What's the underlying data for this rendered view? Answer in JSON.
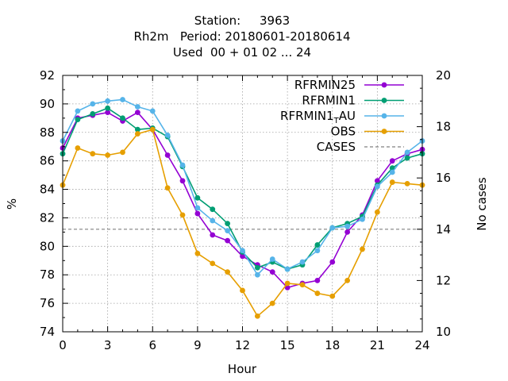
{
  "title": {
    "line1": "Station:     3963",
    "line2": "Rh2m   Period: 20180601-20180614",
    "line3": "Used  00 + 01 02 ... 24"
  },
  "chart_data": {
    "type": "line",
    "xlabel": "Hour",
    "ylabel": "%",
    "y2label": "No cases",
    "xlim": [
      0,
      24
    ],
    "ylim": [
      74,
      92
    ],
    "y2lim": [
      10,
      20
    ],
    "xticks": [
      0,
      3,
      6,
      9,
      12,
      15,
      18,
      21,
      24
    ],
    "yticks": [
      74,
      76,
      78,
      80,
      82,
      84,
      86,
      88,
      90,
      92
    ],
    "y2ticks": [
      10,
      12,
      14,
      16,
      18,
      20
    ],
    "grid": true,
    "legend_position": "top-right",
    "x": [
      0,
      1,
      2,
      3,
      4,
      5,
      6,
      7,
      8,
      9,
      10,
      11,
      12,
      13,
      14,
      15,
      16,
      17,
      18,
      19,
      20,
      21,
      22,
      23,
      24
    ],
    "series": [
      {
        "name": "RFRMIN25",
        "color": "#9400d3",
        "values": [
          86.9,
          89.0,
          89.2,
          89.4,
          88.8,
          89.4,
          88.2,
          86.4,
          84.6,
          82.3,
          80.8,
          80.4,
          79.3,
          78.7,
          78.2,
          77.1,
          77.4,
          77.6,
          78.9,
          81.0,
          82.2,
          84.6,
          86.0,
          86.5,
          86.8
        ]
      },
      {
        "name": "RFRMIN1",
        "color": "#009e73",
        "values": [
          86.5,
          88.9,
          89.3,
          89.7,
          89.0,
          88.2,
          88.3,
          87.7,
          85.6,
          83.4,
          82.6,
          81.6,
          79.6,
          78.5,
          78.9,
          78.4,
          78.7,
          80.1,
          81.3,
          81.6,
          82.1,
          84.3,
          85.5,
          86.2,
          86.5
        ]
      },
      {
        "name": "RFRMIN1_T_AU",
        "label_main": "RFRMIN1",
        "label_sub": "T",
        "label_tail": "AU",
        "color": "#56b4e9",
        "values": [
          87.4,
          89.5,
          90.0,
          90.2,
          90.3,
          89.8,
          89.5,
          87.8,
          85.7,
          82.7,
          81.8,
          81.1,
          79.7,
          78.0,
          79.1,
          78.4,
          78.9,
          79.7,
          81.3,
          81.4,
          81.9,
          84.2,
          85.2,
          86.6,
          87.4
        ]
      },
      {
        "name": "OBS",
        "color": "#e69f00",
        "values": [
          84.3,
          86.9,
          86.5,
          86.4,
          86.6,
          87.9,
          88.2,
          84.1,
          82.2,
          79.5,
          78.8,
          78.2,
          76.9,
          75.1,
          76.0,
          77.4,
          77.3,
          76.7,
          76.5,
          77.6,
          79.8,
          82.4,
          84.5,
          84.4,
          84.3
        ]
      }
    ],
    "cases": {
      "name": "CASES",
      "color": "#808080",
      "axis": "y2",
      "value": 14
    }
  }
}
